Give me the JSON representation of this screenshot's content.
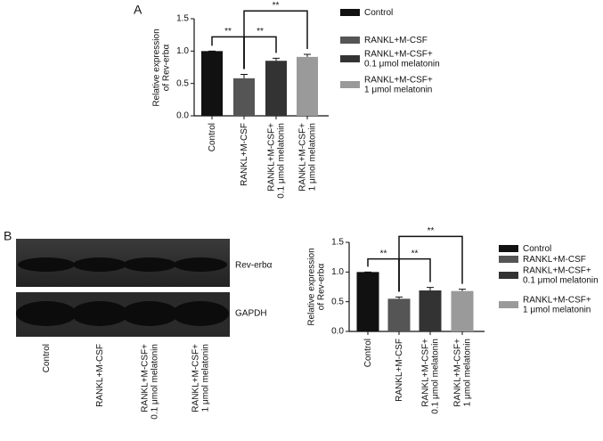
{
  "panel_labels": [
    "A",
    "B"
  ],
  "blot": {
    "bands": [
      "Rev-erbα",
      "GAPDH"
    ],
    "lanes": [
      "Control",
      "RANKL+M-CSF",
      "RANKL+M-CSF+ 0.1 μmol melatonin",
      "RANKL+M-CSF+ 1 μmol melatonin"
    ]
  },
  "chart_data": [
    {
      "type": "bar",
      "ylabel": [
        "Relative expression",
        "of Rev-erbα"
      ],
      "categories": [
        "Control",
        "RANKL+M-CSF",
        "RANKL+M-CSF+ 0.1 μmol melatonin",
        "RANKL+M-CSF+ 1 μmol melatonin"
      ],
      "values": [
        1.0,
        0.58,
        0.85,
        0.91
      ],
      "errors": [
        0,
        0.06,
        0.04,
        0.04
      ],
      "colors": [
        "#111111",
        "#555555",
        "#333333",
        "#9a9a9a"
      ],
      "ylim": [
        0,
        1.5
      ],
      "yticks": [
        {
          "value": 0,
          "label": "0.0"
        },
        0.5,
        {
          "value": 1,
          "label": "1.0"
        },
        1.5
      ],
      "annotations": [
        "**",
        "**",
        "**"
      ],
      "legend": "right"
    },
    {
      "type": "bar",
      "ylabel": [
        "Relative expression",
        "of Rev-erbα"
      ],
      "categories": [
        "Control",
        "RANKL+M-CSF",
        "RANKL+M-CSF+ 0.1 μmol melatonin",
        "RANKL+M-CSF+ 1 μmol melatonin"
      ],
      "values": [
        1.0,
        0.55,
        0.69,
        0.68
      ],
      "errors": [
        0,
        0.03,
        0.05,
        0.03
      ],
      "colors": [
        "#111111",
        "#555555",
        "#333333",
        "#9a9a9a"
      ],
      "ylim": [
        0,
        1.5
      ],
      "yticks": [
        {
          "value": 0,
          "label": "0.0"
        },
        0.5,
        {
          "value": 1,
          "label": "1.0"
        },
        1.5
      ],
      "annotations": [
        "**",
        "**",
        "**"
      ],
      "legend": "right"
    }
  ]
}
